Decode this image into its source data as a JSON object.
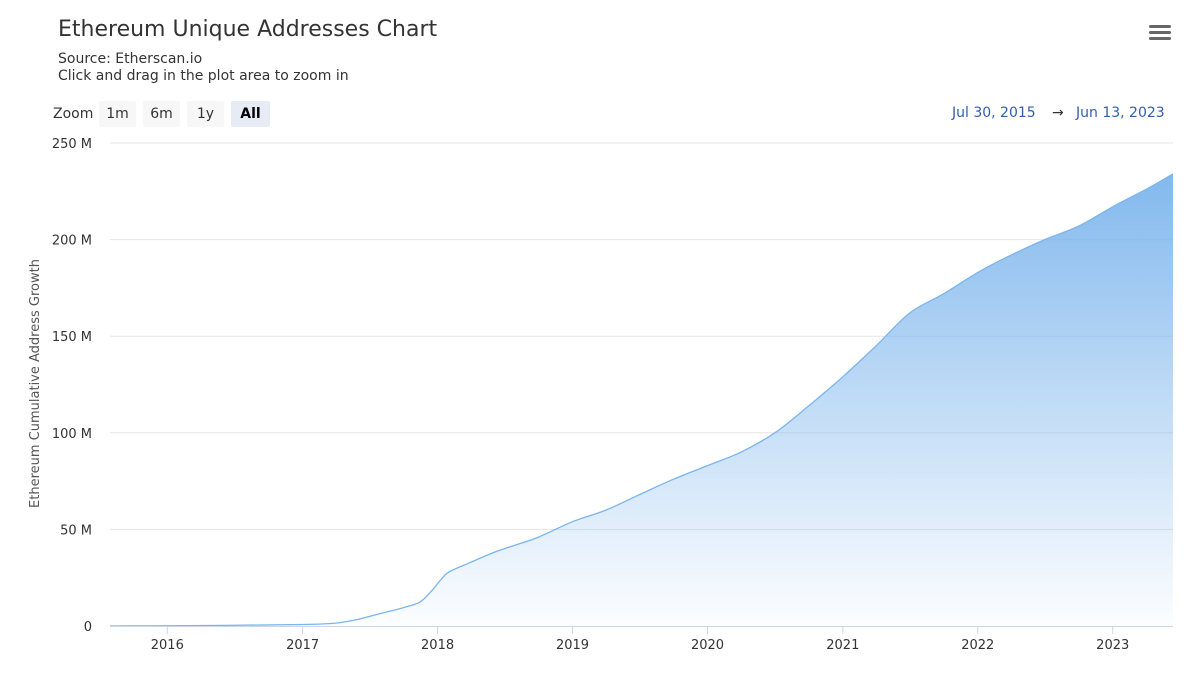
{
  "header": {
    "title": "Ethereum Unique Addresses Chart",
    "source": "Source: Etherscan.io",
    "hint": "Click and drag in the plot area to zoom in",
    "menu_icon": "hamburger-menu-icon"
  },
  "range_selector": {
    "zoom_label": "Zoom",
    "buttons": [
      {
        "label": "1m",
        "active": false
      },
      {
        "label": "6m",
        "active": false
      },
      {
        "label": "1y",
        "active": false
      },
      {
        "label": "All",
        "active": true
      }
    ],
    "from": "Jul 30, 2015",
    "arrow": "→",
    "to": "Jun 13, 2023"
  },
  "chart_data": {
    "type": "area",
    "title": "Ethereum Unique Addresses Chart",
    "subtitle": "Source: Etherscan.io",
    "xlabel": "",
    "ylabel": "Ethereum Cumulative Address Growth",
    "xlim": [
      "2015-07-30",
      "2023-06-13"
    ],
    "ylim": [
      0,
      250000000
    ],
    "yticks": [
      {
        "value": 0,
        "label": "0"
      },
      {
        "value": 50000000,
        "label": "50 M"
      },
      {
        "value": 100000000,
        "label": "100 M"
      },
      {
        "value": 150000000,
        "label": "150 M"
      },
      {
        "value": 200000000,
        "label": "200 M"
      },
      {
        "value": 250000000,
        "label": "250 M"
      }
    ],
    "xticks": [
      {
        "date": "2016-01-01",
        "label": "2016"
      },
      {
        "date": "2017-01-01",
        "label": "2017"
      },
      {
        "date": "2018-01-01",
        "label": "2018"
      },
      {
        "date": "2019-01-01",
        "label": "2019"
      },
      {
        "date": "2020-01-01",
        "label": "2020"
      },
      {
        "date": "2021-01-01",
        "label": "2021"
      },
      {
        "date": "2022-01-01",
        "label": "2022"
      },
      {
        "date": "2023-01-01",
        "label": "2023"
      }
    ],
    "grid": true,
    "legend": "none",
    "line_color": "#7cb5ec",
    "series": [
      {
        "points": [
          [
            "2015-07-30",
            0
          ],
          [
            "2016-01-01",
            100000
          ],
          [
            "2016-06-01",
            300000
          ],
          [
            "2017-01-01",
            800000
          ],
          [
            "2017-04-01",
            1500000
          ],
          [
            "2017-06-01",
            3500000
          ],
          [
            "2017-08-01",
            6500000
          ],
          [
            "2017-10-01",
            9500000
          ],
          [
            "2017-11-15",
            12500000
          ],
          [
            "2017-12-15",
            18000000
          ],
          [
            "2018-01-10",
            24000000
          ],
          [
            "2018-02-01",
            28000000
          ],
          [
            "2018-04-01",
            33000000
          ],
          [
            "2018-06-01",
            38000000
          ],
          [
            "2018-08-01",
            42000000
          ],
          [
            "2018-10-01",
            46000000
          ],
          [
            "2019-01-01",
            54000000
          ],
          [
            "2019-04-01",
            60000000
          ],
          [
            "2019-07-01",
            68000000
          ],
          [
            "2019-10-01",
            76000000
          ],
          [
            "2020-01-01",
            83000000
          ],
          [
            "2020-04-01",
            90000000
          ],
          [
            "2020-07-01",
            100000000
          ],
          [
            "2020-10-01",
            114000000
          ],
          [
            "2021-01-01",
            129000000
          ],
          [
            "2021-04-01",
            145000000
          ],
          [
            "2021-07-01",
            162000000
          ],
          [
            "2021-10-01",
            172000000
          ],
          [
            "2022-01-01",
            183000000
          ],
          [
            "2022-04-01",
            192000000
          ],
          [
            "2022-07-01",
            200000000
          ],
          [
            "2022-10-01",
            207000000
          ],
          [
            "2023-01-01",
            217000000
          ],
          [
            "2023-04-01",
            226000000
          ],
          [
            "2023-06-13",
            234000000
          ]
        ]
      }
    ]
  }
}
